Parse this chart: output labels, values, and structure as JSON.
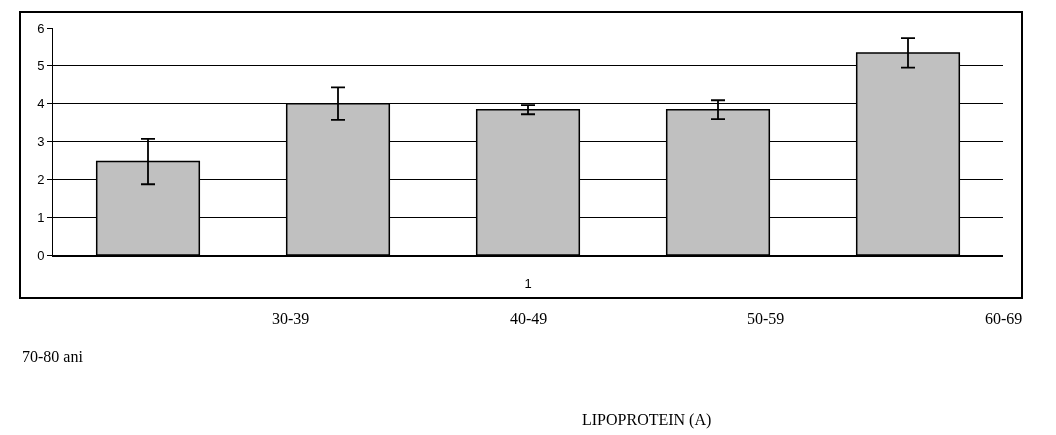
{
  "chart_data": {
    "type": "bar",
    "categories": [
      null,
      null,
      "1",
      null,
      null
    ],
    "values": [
      2.47,
      4.0,
      3.84,
      3.84,
      5.34
    ],
    "errors": [
      0.6,
      0.43,
      0.12,
      0.25,
      0.39
    ],
    "color": "#c0c0c0",
    "ylim": [
      0,
      6
    ],
    "yticks": [
      0,
      1,
      2,
      3,
      4,
      5,
      6
    ],
    "grid": "y",
    "annotations": [
      "30-39",
      "40-49",
      "50-59",
      "60-69",
      "70-80 ani",
      "LIPOPROTEIN (A)"
    ]
  }
}
